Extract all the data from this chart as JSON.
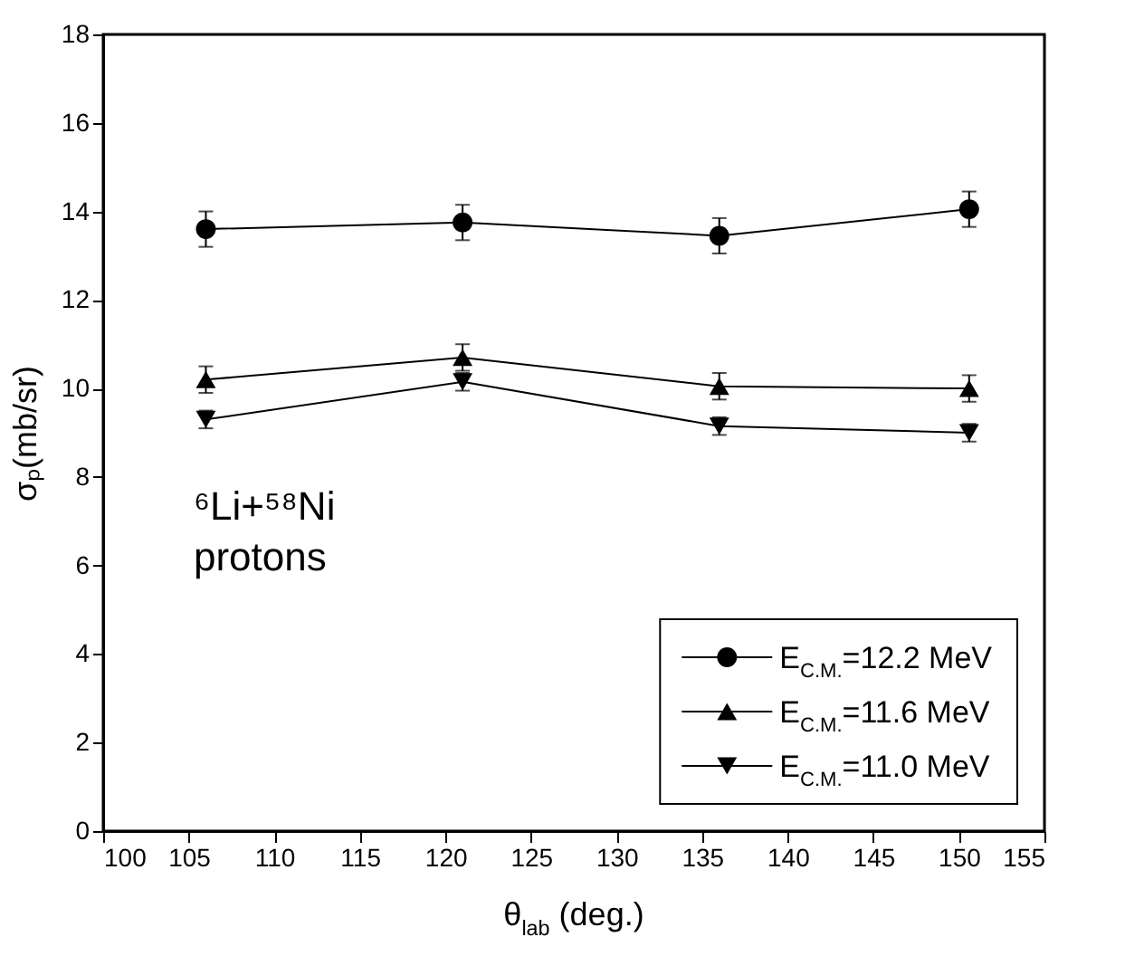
{
  "chart_data": {
    "type": "line",
    "xlabel": "θ$_{lab}$ (deg.)",
    "ylabel": "σₚ(mb/sr)",
    "x": [
      106,
      121,
      136,
      150.6
    ],
    "series": [
      {
        "name": "E$_{C.M.}$=12.2 MeV",
        "color": "#000000",
        "marker": "circle",
        "values": [
          13.6,
          13.75,
          13.45,
          14.05
        ],
        "errors": [
          0.4,
          0.4,
          0.4,
          0.4
        ]
      },
      {
        "name": "E$_{C.M.}$=11.6 MeV",
        "color": "#000000",
        "marker": "triangle",
        "values": [
          10.2,
          10.7,
          10.05,
          10.0
        ],
        "errors": [
          0.3,
          0.3,
          0.3,
          0.3
        ]
      },
      {
        "name": "E$_{C.M.}$=11.0 MeV",
        "color": "#000000",
        "marker": "triangle-down",
        "values": [
          9.3,
          10.15,
          9.15,
          9.0
        ],
        "errors": [
          0.2,
          0.2,
          0.2,
          0.2
        ]
      }
    ],
    "xlim": [
      100,
      155
    ],
    "xticks": [
      100,
      105,
      110,
      115,
      120,
      125,
      130,
      135,
      140,
      145,
      150,
      155
    ],
    "ylim": [
      0,
      18
    ],
    "yticks": [
      0,
      2,
      4,
      6,
      8,
      10,
      12,
      14,
      16,
      18
    ],
    "grid": false,
    "legend": "bottom right",
    "line_style": "solid",
    "annotations": [
      "⁶Li+⁵⁸Ni",
      "protons"
    ]
  }
}
